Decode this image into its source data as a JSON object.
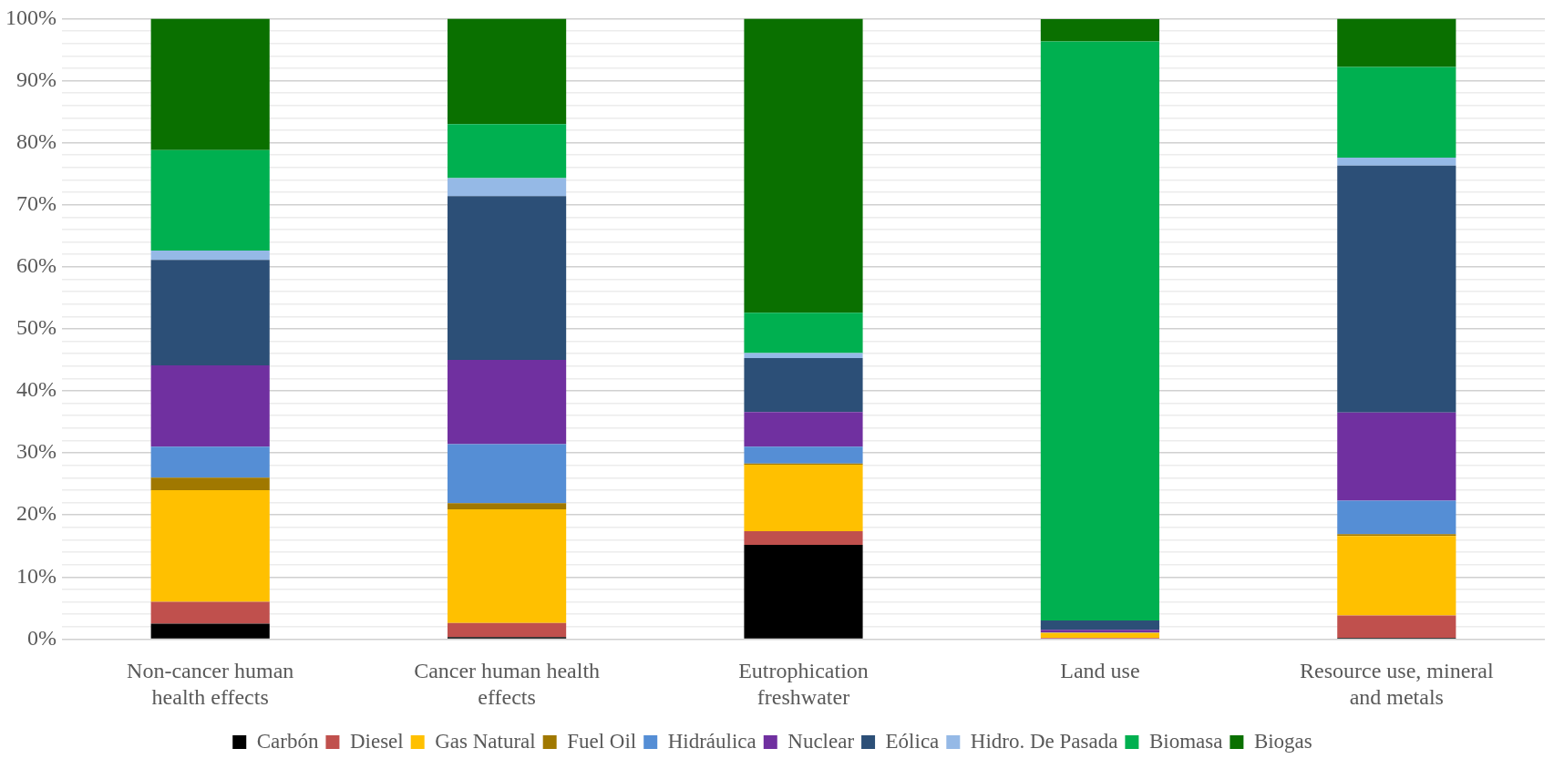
{
  "chart_data": {
    "type": "bar",
    "stacked": true,
    "categories": [
      "Non-cancer human health effects",
      "Cancer human health effects",
      "Eutrophication freshwater",
      "Land use",
      "Resource use, mineral and metals"
    ],
    "series": [
      {
        "name": "Carbón",
        "color": "#000000",
        "values": [
          2.5,
          0.3,
          15.2,
          null,
          0.2
        ]
      },
      {
        "name": "Diesel",
        "color": "#c0504d",
        "values": [
          3.5,
          2.3,
          2.2,
          0.2,
          3.6
        ]
      },
      {
        "name": "Gas Natural",
        "color": "#ffc000",
        "values": [
          18.0,
          18.3,
          10.7,
          0.8,
          12.8
        ]
      },
      {
        "name": "Fuel Oil",
        "color": "#a07800",
        "values": [
          2.0,
          1.0,
          0.2,
          0.0,
          0.3
        ]
      },
      {
        "name": "Hidráulica",
        "color": "#558ed5",
        "values": [
          5.0,
          9.5,
          2.7,
          0.1,
          5.4
        ]
      },
      {
        "name": "Nuclear",
        "color": "#7030a0",
        "values": [
          13.1,
          13.6,
          5.6,
          0.4,
          14.2
        ]
      },
      {
        "name": "Eólica",
        "color": "#2c4f77",
        "values": [
          17.0,
          26.4,
          8.7,
          1.5,
          39.8
        ]
      },
      {
        "name": "Hidro. De Pasada",
        "color": "#95b9e6",
        "values": [
          1.5,
          2.9,
          0.8,
          0.0,
          1.3
        ]
      },
      {
        "name": "Biomasa",
        "color": "#00b050",
        "values": [
          16.2,
          8.7,
          6.5,
          93.3,
          14.6
        ]
      },
      {
        "name": "Biogas",
        "color": "#0a7000",
        "values": [
          21.2,
          17.0,
          47.4,
          3.6,
          7.8
        ]
      }
    ],
    "ylim": [
      0,
      100
    ],
    "yticks": [
      {
        "value": 0,
        "label": "0%"
      },
      {
        "value": 2,
        "label": null
      },
      {
        "value": 4,
        "label": null
      },
      {
        "value": 6,
        "label": null
      },
      {
        "value": 8,
        "label": null
      },
      {
        "value": 10,
        "label": "10%"
      },
      {
        "value": 12,
        "label": null
      },
      {
        "value": 14,
        "label": null
      },
      {
        "value": 16,
        "label": null
      },
      {
        "value": 18,
        "label": null
      },
      {
        "value": 20,
        "label": "20%"
      },
      {
        "value": 22,
        "label": null
      },
      {
        "value": 24,
        "label": null
      },
      {
        "value": 26,
        "label": null
      },
      {
        "value": 28,
        "label": null
      },
      {
        "value": 30,
        "label": "30%"
      },
      {
        "value": 32,
        "label": null
      },
      {
        "value": 34,
        "label": null
      },
      {
        "value": 36,
        "label": null
      },
      {
        "value": 38,
        "label": null
      },
      {
        "value": 40,
        "label": "40%"
      },
      {
        "value": 42,
        "label": null
      },
      {
        "value": 44,
        "label": null
      },
      {
        "value": 46,
        "label": null
      },
      {
        "value": 48,
        "label": null
      },
      {
        "value": 50,
        "label": "50%"
      },
      {
        "value": 52,
        "label": null
      },
      {
        "value": 54,
        "label": null
      },
      {
        "value": 56,
        "label": null
      },
      {
        "value": 58,
        "label": null
      },
      {
        "value": 60,
        "label": "60%"
      },
      {
        "value": 62,
        "label": null
      },
      {
        "value": 64,
        "label": null
      },
      {
        "value": 66,
        "label": null
      },
      {
        "value": 68,
        "label": null
      },
      {
        "value": 70,
        "label": "70%"
      },
      {
        "value": 72,
        "label": null
      },
      {
        "value": 74,
        "label": null
      },
      {
        "value": 76,
        "label": null
      },
      {
        "value": 78,
        "label": null
      },
      {
        "value": 80,
        "label": "80%"
      },
      {
        "value": 82,
        "label": null
      },
      {
        "value": 84,
        "label": null
      },
      {
        "value": 86,
        "label": null
      },
      {
        "value": 88,
        "label": null
      },
      {
        "value": 90,
        "label": "90%"
      },
      {
        "value": 92,
        "label": null
      },
      {
        "value": 94,
        "label": null
      },
      {
        "value": 96,
        "label": null
      },
      {
        "value": 98,
        "label": null
      },
      {
        "value": 100,
        "label": "100%"
      }
    ],
    "grid": "y",
    "legend": "bottom"
  }
}
